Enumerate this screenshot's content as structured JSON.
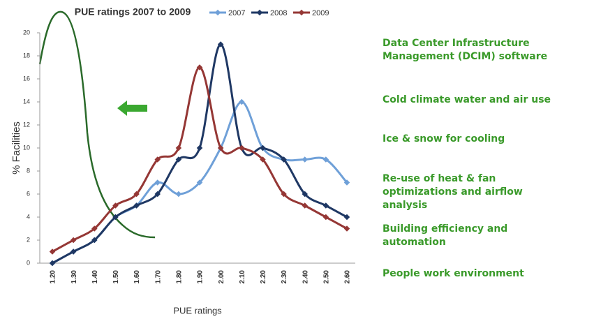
{
  "chart_data": {
    "type": "line",
    "title": "PUE ratings 2007 to 2009",
    "x_label": "PUE ratings",
    "y_label": "% Facilities",
    "categories": [
      "1.20",
      "1.30",
      "1.40",
      "1.50",
      "1.60",
      "1.70",
      "1.80",
      "1.90",
      "2.00",
      "2.10",
      "2.20",
      "2.30",
      "2.40",
      "2.50",
      "2.60"
    ],
    "series": [
      {
        "name": "2007",
        "color": "#6fa0d8",
        "values": [
          0,
          1,
          2,
          4,
          5,
          7,
          6,
          7,
          10,
          14,
          10,
          9,
          9,
          9,
          7
        ]
      },
      {
        "name": "2008",
        "color": "#1f3864",
        "values": [
          0,
          1,
          2,
          4,
          5,
          6,
          9,
          10,
          19,
          10,
          10,
          9,
          6,
          5,
          4
        ]
      },
      {
        "name": "2009",
        "color": "#953735",
        "values": [
          1,
          2,
          3,
          5,
          6,
          9,
          10,
          17,
          10,
          10,
          9,
          6,
          5,
          4,
          3
        ]
      }
    ],
    "ylim": [
      0,
      20
    ],
    "yticks": [
      0,
      2,
      4,
      6,
      8,
      10,
      12,
      14,
      16,
      18,
      20
    ],
    "grid": false,
    "legend": "top",
    "annotations": [
      [
        "Data Center Infrastructure",
        "Management (DCIM) software"
      ],
      [
        "Cold climate water and air use"
      ],
      [
        "Ice & snow for cooling"
      ],
      [
        "Re-use of heat &  fan",
        "optimizations and airflow",
        "analysis"
      ],
      [
        "Building efficiency and",
        "automation"
      ],
      [
        "People work environment"
      ]
    ]
  }
}
